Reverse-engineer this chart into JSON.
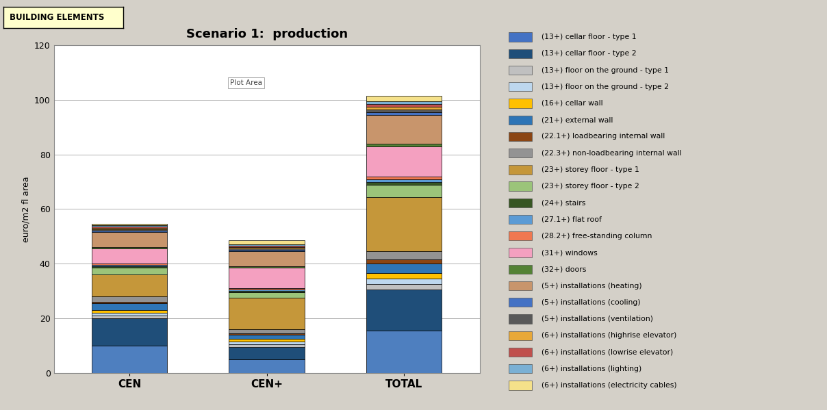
{
  "title": "Scenario 1:  production",
  "ylabel": "euro/m2 fl area",
  "header_text": "BUILDING ELEMENTS",
  "plot_area_text": "Plot Area",
  "categories": [
    "CEN",
    "CEN+",
    "TOTAL"
  ],
  "ylim": [
    0,
    120
  ],
  "yticks": [
    0,
    20,
    40,
    60,
    80,
    100,
    120
  ],
  "background_color": "#d4d0c8",
  "plot_bg_color": "#ffffff",
  "bar_width": 0.55,
  "legend_items": [
    {
      "label": "(6+) installations (electricity cables)",
      "color": "#f5e18a"
    },
    {
      "label": "(6+) installations (lighting)",
      "color": "#7ab0d4"
    },
    {
      "label": "(6+) installations (lowrise elevator)",
      "color": "#c0504d"
    },
    {
      "label": "(6+) installations (highrise elevator)",
      "color": "#e8a838"
    },
    {
      "label": "(5+) installations (ventilation)",
      "color": "#595959"
    },
    {
      "label": "(5+) installations (cooling)",
      "color": "#4472c4"
    },
    {
      "label": "(5+) installations (heating)",
      "color": "#c8956c"
    },
    {
      "label": "(32+) doors",
      "color": "#548235"
    },
    {
      "label": "(31+) windows",
      "color": "#f4a0c0"
    },
    {
      "label": "(28.2+) free-standing column",
      "color": "#f07850"
    },
    {
      "label": "(27.1+) flat roof",
      "color": "#5b9bd5"
    },
    {
      "label": "(24+) stairs",
      "color": "#375623"
    },
    {
      "label": "(23+) storey floor - type 2",
      "color": "#9bc47a"
    },
    {
      "label": "(23+) storey floor - type 1",
      "color": "#c5973a"
    },
    {
      "label": "(22.3+) non-loadbearing internal wall",
      "color": "#939393"
    },
    {
      "label": "(22.1+) loadbearing internal wall",
      "color": "#8b4513"
    },
    {
      "label": "(21+) external wall",
      "color": "#2e75b6"
    },
    {
      "label": "(16+) cellar wall",
      "color": "#ffc000"
    },
    {
      "label": "(13+) floor on the ground - type 2",
      "color": "#bdd7ee"
    },
    {
      "label": "(13+) floor on the ground - type 1",
      "color": "#c0c0c0"
    },
    {
      "label": "(13+) cellar floor - type 2",
      "color": "#1f4e79"
    },
    {
      "label": "(13+) cellar floor - type 1",
      "color": "#4472c4"
    }
  ],
  "stacks": {
    "CEN": [
      {
        "label": "(13+) cellar floor - type 1",
        "value": 10.0,
        "color": "#4e7fbf"
      },
      {
        "label": "(13+) cellar floor - type 2",
        "value": 10.0,
        "color": "#1f4e79"
      },
      {
        "label": "(13+) floor on the ground - type 1",
        "value": 1.0,
        "color": "#c0c0c0"
      },
      {
        "label": "(13+) floor on the ground - type 2",
        "value": 1.0,
        "color": "#bdd7ee"
      },
      {
        "label": "(16+) cellar wall",
        "value": 1.0,
        "color": "#ffc000"
      },
      {
        "label": "(21+) external wall",
        "value": 2.5,
        "color": "#2e75b6"
      },
      {
        "label": "(22.1+) loadbearing internal wall",
        "value": 0.5,
        "color": "#8b4513"
      },
      {
        "label": "(22.3+) non-loadbearing internal wall",
        "value": 2.0,
        "color": "#939393"
      },
      {
        "label": "(23+) storey floor - type 1",
        "value": 8.0,
        "color": "#c5973a"
      },
      {
        "label": "(23+) storey floor - type 2",
        "value": 2.5,
        "color": "#9bc47a"
      },
      {
        "label": "(24+) stairs",
        "value": 0.5,
        "color": "#375623"
      },
      {
        "label": "(27.1+) flat roof",
        "value": 0.5,
        "color": "#5b9bd5"
      },
      {
        "label": "(28.2+) free-standing column",
        "value": 0.5,
        "color": "#f07850"
      },
      {
        "label": "(31+) windows",
        "value": 5.5,
        "color": "#f4a0c0"
      },
      {
        "label": "(32+) doors",
        "value": 0.5,
        "color": "#548235"
      },
      {
        "label": "(5+) installations (heating)",
        "value": 5.5,
        "color": "#c8956c"
      },
      {
        "label": "(5+) installations (cooling)",
        "value": 0.5,
        "color": "#4472c4"
      },
      {
        "label": "(5+) installations (ventilation)",
        "value": 0.5,
        "color": "#595959"
      },
      {
        "label": "(6+) installations (highrise elevator)",
        "value": 0.5,
        "color": "#e8a838"
      },
      {
        "label": "(6+) installations (lowrise elevator)",
        "value": 0.5,
        "color": "#c0504d"
      },
      {
        "label": "(6+) installations (lighting)",
        "value": 0.5,
        "color": "#7ab0d4"
      },
      {
        "label": "(6+) installations (electricity cables)",
        "value": 0.5,
        "color": "#f5e18a"
      }
    ],
    "CEN+": [
      {
        "label": "(13+) cellar floor - type 1",
        "value": 5.0,
        "color": "#4e7fbf"
      },
      {
        "label": "(13+) cellar floor - type 2",
        "value": 4.5,
        "color": "#1f4e79"
      },
      {
        "label": "(13+) floor on the ground - type 1",
        "value": 1.0,
        "color": "#c0c0c0"
      },
      {
        "label": "(13+) floor on the ground - type 2",
        "value": 1.0,
        "color": "#bdd7ee"
      },
      {
        "label": "(16+) cellar wall",
        "value": 1.0,
        "color": "#ffc000"
      },
      {
        "label": "(21+) external wall",
        "value": 1.5,
        "color": "#2e75b6"
      },
      {
        "label": "(22.1+) loadbearing internal wall",
        "value": 0.5,
        "color": "#8b4513"
      },
      {
        "label": "(22.3+) non-loadbearing internal wall",
        "value": 1.5,
        "color": "#939393"
      },
      {
        "label": "(23+) storey floor - type 1",
        "value": 11.5,
        "color": "#c5973a"
      },
      {
        "label": "(23+) storey floor - type 2",
        "value": 2.0,
        "color": "#9bc47a"
      },
      {
        "label": "(24+) stairs",
        "value": 0.5,
        "color": "#375623"
      },
      {
        "label": "(27.1+) flat roof",
        "value": 0.5,
        "color": "#5b9bd5"
      },
      {
        "label": "(28.2+) free-standing column",
        "value": 0.5,
        "color": "#f07850"
      },
      {
        "label": "(31+) windows",
        "value": 7.5,
        "color": "#f4a0c0"
      },
      {
        "label": "(32+) doors",
        "value": 0.5,
        "color": "#548235"
      },
      {
        "label": "(5+) installations (heating)",
        "value": 5.5,
        "color": "#c8956c"
      },
      {
        "label": "(5+) installations (cooling)",
        "value": 0.5,
        "color": "#4472c4"
      },
      {
        "label": "(5+) installations (ventilation)",
        "value": 0.5,
        "color": "#595959"
      },
      {
        "label": "(6+) installations (highrise elevator)",
        "value": 0.5,
        "color": "#e8a838"
      },
      {
        "label": "(6+) installations (lowrise elevator)",
        "value": 0.5,
        "color": "#c0504d"
      },
      {
        "label": "(6+) installations (lighting)",
        "value": 0.5,
        "color": "#7ab0d4"
      },
      {
        "label": "(6+) installations (electricity cables)",
        "value": 1.5,
        "color": "#f5e18a"
      }
    ],
    "TOTAL": [
      {
        "label": "(13+) cellar floor - type 1",
        "value": 15.5,
        "color": "#4e7fbf"
      },
      {
        "label": "(13+) cellar floor - type 2",
        "value": 15.0,
        "color": "#1f4e79"
      },
      {
        "label": "(13+) floor on the ground - type 1",
        "value": 2.0,
        "color": "#c0c0c0"
      },
      {
        "label": "(13+) floor on the ground - type 2",
        "value": 2.0,
        "color": "#bdd7ee"
      },
      {
        "label": "(16+) cellar wall",
        "value": 2.0,
        "color": "#ffc000"
      },
      {
        "label": "(21+) external wall",
        "value": 3.5,
        "color": "#2e75b6"
      },
      {
        "label": "(22.1+) loadbearing internal wall",
        "value": 1.5,
        "color": "#8b4513"
      },
      {
        "label": "(22.3+) non-loadbearing internal wall",
        "value": 3.0,
        "color": "#939393"
      },
      {
        "label": "(23+) storey floor - type 1",
        "value": 20.0,
        "color": "#c5973a"
      },
      {
        "label": "(23+) storey floor - type 2",
        "value": 4.5,
        "color": "#9bc47a"
      },
      {
        "label": "(24+) stairs",
        "value": 1.0,
        "color": "#375623"
      },
      {
        "label": "(27.1+) flat roof",
        "value": 1.0,
        "color": "#5b9bd5"
      },
      {
        "label": "(28.2+) free-standing column",
        "value": 1.0,
        "color": "#f07850"
      },
      {
        "label": "(31+) windows",
        "value": 11.0,
        "color": "#f4a0c0"
      },
      {
        "label": "(32+) doors",
        "value": 1.0,
        "color": "#548235"
      },
      {
        "label": "(5+) installations (heating)",
        "value": 10.5,
        "color": "#c8956c"
      },
      {
        "label": "(5+) installations (cooling)",
        "value": 1.0,
        "color": "#4472c4"
      },
      {
        "label": "(5+) installations (ventilation)",
        "value": 1.0,
        "color": "#595959"
      },
      {
        "label": "(6+) installations (highrise elevator)",
        "value": 1.0,
        "color": "#e8a838"
      },
      {
        "label": "(6+) installations (lowrise elevator)",
        "value": 1.0,
        "color": "#c0504d"
      },
      {
        "label": "(6+) installations (lighting)",
        "value": 1.0,
        "color": "#7ab0d4"
      },
      {
        "label": "(6+) installations (electricity cables)",
        "value": 2.0,
        "color": "#f5e18a"
      }
    ]
  }
}
